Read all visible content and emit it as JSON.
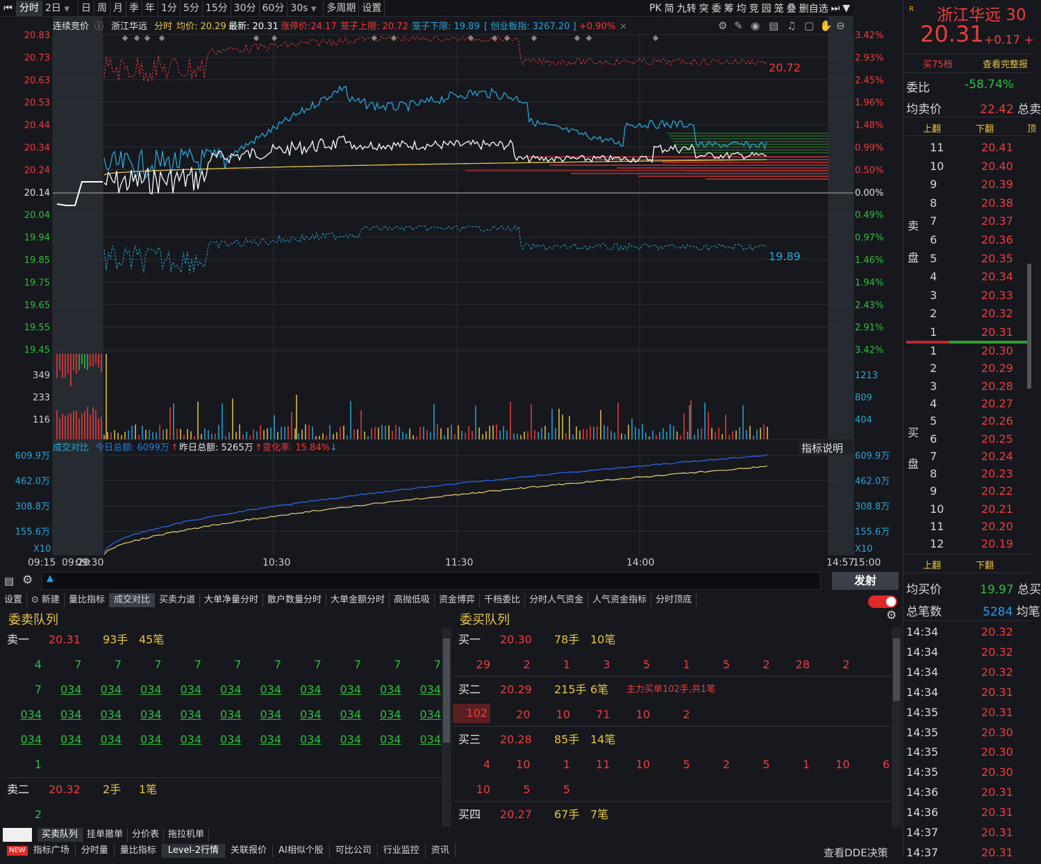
{
  "toolbar": {
    "tabs": [
      "分时",
      "2日",
      "日",
      "周",
      "月",
      "季",
      "年",
      "1分",
      "5分",
      "15分",
      "30分",
      "60分",
      "30s",
      "多周期",
      "设置"
    ],
    "right_items": [
      "PK",
      "简",
      "九转",
      "突",
      "委",
      "筹",
      "均",
      "竞",
      "园",
      "笼",
      "叠",
      "删自选"
    ]
  },
  "chart_header": {
    "mode": "连续竞价",
    "name": "浙江华远",
    "type_label": "分时",
    "avg_label": "均价: 20.29",
    "latest_label": "最新: 20.31",
    "limit_up_label": "涨停价:24.17",
    "cage_upper": "笼子上限: 20.72",
    "cage_lower": "笼子下限: 19.89",
    "index_label": "[ 创业板指: 3267.20 ]",
    "index_change": "+0.90%"
  },
  "price_axis": {
    "left": [
      "20.83",
      "20.73",
      "20.63",
      "20.53",
      "20.44",
      "20.34",
      "20.24",
      "20.14",
      "20.04",
      "19.94",
      "19.85",
      "19.75",
      "19.65",
      "19.55",
      "19.45"
    ],
    "right": [
      "3.42%",
      "2.93%",
      "2.45%",
      "1.96%",
      "1.48%",
      "0.99%",
      "0.50%",
      "0.00%",
      "0.49%",
      "0.97%",
      "1.46%",
      "1.94%",
      "2.43%",
      "2.91%",
      "3.42%"
    ]
  },
  "cage_marks": {
    "upper": "20.72",
    "lower": "19.89"
  },
  "volume_axis": {
    "left": [
      "349",
      "233",
      "116"
    ],
    "right": [
      "1213",
      "809",
      "404"
    ]
  },
  "amount_panel": {
    "title": "成交对比",
    "today": "今日总额: 6099万",
    "yesterday": "昨日总额: 5265万",
    "change": "变化率: 15.84%",
    "help": "指标说明",
    "axis": [
      "609.9万",
      "462.0万",
      "308.8万",
      "155.6万"
    ],
    "multiplier": "X10"
  },
  "time_axis": [
    "09:15",
    "09:20",
    "09:30",
    "10:30",
    "11:30",
    "14:00",
    "14:57",
    "15:00"
  ],
  "right_panel": {
    "name": "浙江华远",
    "code_part": "30",
    "price": "20.31",
    "change": "+0.17",
    "btn_level": "买75档",
    "btn_full": "查看完整报",
    "ratio_label": "委比",
    "ratio_value": "-58.74%",
    "avg_sell_label": "均卖价",
    "avg_sell_value": "22.42",
    "avg_sell_suffix": "总卖",
    "up_label": "上翻",
    "down_label": "下翻",
    "sell_side": "卖",
    "sell_side2": "盘",
    "buy_side": "买",
    "buy_side2": "盘",
    "sell_rows": [
      {
        "n": "11",
        "p": "20.41"
      },
      {
        "n": "10",
        "p": "20.40"
      },
      {
        "n": "9",
        "p": "20.39"
      },
      {
        "n": "8",
        "p": "20.38"
      },
      {
        "n": "7",
        "p": "20.37"
      },
      {
        "n": "6",
        "p": "20.36"
      },
      {
        "n": "5",
        "p": "20.35"
      },
      {
        "n": "4",
        "p": "20.34"
      },
      {
        "n": "3",
        "p": "20.33"
      },
      {
        "n": "2",
        "p": "20.32"
      },
      {
        "n": "1",
        "p": "20.31"
      }
    ],
    "buy_rows": [
      {
        "n": "1",
        "p": "20.30"
      },
      {
        "n": "2",
        "p": "20.29"
      },
      {
        "n": "3",
        "p": "20.28"
      },
      {
        "n": "4",
        "p": "20.27"
      },
      {
        "n": "5",
        "p": "20.26"
      },
      {
        "n": "6",
        "p": "20.25"
      },
      {
        "n": "7",
        "p": "20.24"
      },
      {
        "n": "8",
        "p": "20.23"
      },
      {
        "n": "9",
        "p": "20.22"
      },
      {
        "n": "10",
        "p": "20.21"
      },
      {
        "n": "11",
        "p": "20.20"
      },
      {
        "n": "12",
        "p": "20.19"
      }
    ],
    "avg_buy_label": "均买价",
    "avg_buy_value": "19.97",
    "avg_buy_suffix": "总买",
    "total_label": "总笔数",
    "total_value": "5284",
    "total_suffix": "均笔",
    "ticks": [
      {
        "t": "14:34",
        "p": "20.32"
      },
      {
        "t": "14:34",
        "p": "20.32"
      },
      {
        "t": "14:34",
        "p": "20.32"
      },
      {
        "t": "14:34",
        "p": "20.31"
      },
      {
        "t": "14:35",
        "p": "20.31"
      },
      {
        "t": "14:35",
        "p": "20.30"
      },
      {
        "t": "14:35",
        "p": "20.30"
      },
      {
        "t": "14:35",
        "p": "20.30"
      },
      {
        "t": "14:36",
        "p": "20.31"
      },
      {
        "t": "14:36",
        "p": "20.31"
      },
      {
        "t": "14:37",
        "p": "20.31"
      },
      {
        "t": "14:37",
        "p": "20.31"
      }
    ]
  },
  "bottom": {
    "send_btn": "发射",
    "tabs": [
      "设置",
      "新建",
      "量比指标",
      "成交对比",
      "买卖力道",
      "大单净量分时",
      "散户数量分时",
      "大单金额分时",
      "高抛低吸",
      "资金博弈",
      "千档委比",
      "分时人气资金",
      "人气资金指标",
      "分时顶底"
    ],
    "sell_title": "委卖队列",
    "buy_title": "委买队列",
    "sell1": {
      "label": "卖一",
      "price": "20.31",
      "hands": "93手",
      "orders": "45笔"
    },
    "sell1_rows": [
      [
        "4",
        "7",
        "7",
        "7",
        "7",
        "7",
        "7",
        "7",
        "7",
        "7",
        "7"
      ],
      [
        "7",
        "034",
        "034",
        "034",
        "034",
        "034",
        "034",
        "034",
        "034",
        "034",
        "034"
      ],
      [
        "034",
        "034",
        "034",
        "034",
        "034",
        "034",
        "034",
        "034",
        "034",
        "034",
        "034"
      ],
      [
        "034",
        "034",
        "034",
        "034",
        "034",
        "034",
        "034",
        "034",
        "034",
        "034",
        "034"
      ],
      [
        "1"
      ]
    ],
    "sell2": {
      "label": "卖二",
      "price": "20.32",
      "hands": "2手",
      "orders": "1笔"
    },
    "sell2_rows": [
      [
        "2"
      ]
    ],
    "buy1": {
      "label": "买一",
      "price": "20.30",
      "hands": "78手",
      "orders": "10笔"
    },
    "buy1_rows": [
      [
        "29",
        "2",
        "1",
        "3",
        "5",
        "1",
        "5",
        "2",
        "28",
        "2"
      ]
    ],
    "buy2": {
      "label": "买二",
      "price": "20.29",
      "hands": "215手",
      "orders": "6笔",
      "note": "主力买单102手,共1笔"
    },
    "buy2_rows": [
      [
        "102",
        "20",
        "10",
        "71",
        "10",
        "2"
      ]
    ],
    "buy3": {
      "label": "买三",
      "price": "20.28",
      "hands": "85手",
      "orders": "14笔"
    },
    "buy3_rows": [
      [
        "4",
        "10",
        "1",
        "11",
        "10",
        "5",
        "2",
        "5",
        "1",
        "10",
        "6"
      ],
      [
        "10",
        "5",
        "5"
      ]
    ],
    "buy4": {
      "label": "买四",
      "price": "20.27",
      "hands": "67手",
      "orders": "7笔"
    },
    "panel_tabs": [
      "买卖队列",
      "挂单撤单",
      "分价表",
      "拖拉机单"
    ],
    "footer_tabs": [
      "NEW",
      "指标广场",
      "分时量",
      "量比指标",
      "Level-2行情",
      "关联报价",
      "AI相似个股",
      "可比公司",
      "行业监控",
      "资讯"
    ],
    "footer_right": "查看DDE决策"
  },
  "colors": {
    "up": "#f23b3b",
    "down": "#2fbf3f",
    "price_line": "#ffffff",
    "avg_line": "#e8c544",
    "cyan": "#2aa6d8"
  }
}
